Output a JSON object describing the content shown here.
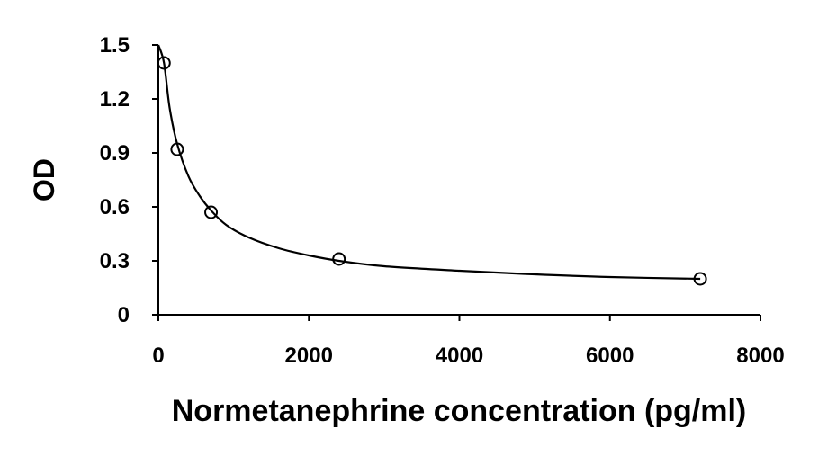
{
  "chart_data": {
    "type": "scatter",
    "xlabel": "Normetanephrine concentration (pg/ml)",
    "ylabel": "OD",
    "xlim": [
      0,
      8000
    ],
    "ylim": [
      0,
      1.5
    ],
    "x_ticks": [
      "0",
      "2000",
      "4000",
      "6000",
      "8000"
    ],
    "y_ticks": [
      "0",
      "0.3",
      "0.6",
      "0.9",
      "1.2",
      "1.5"
    ],
    "grid": false,
    "legend": "none",
    "series": [
      {
        "points": [
          {
            "x": 75,
            "y": 1.4
          },
          {
            "x": 250,
            "y": 0.92
          },
          {
            "x": 700,
            "y": 0.57
          },
          {
            "x": 2400,
            "y": 0.31
          },
          {
            "x": 7200,
            "y": 0.2
          }
        ],
        "marker": "open-circle",
        "color": "#000000"
      }
    ],
    "fit_curve": {
      "color": "#000000",
      "points": [
        {
          "x": 0,
          "y": 1.5
        },
        {
          "x": 75,
          "y": 1.4
        },
        {
          "x": 150,
          "y": 1.15
        },
        {
          "x": 250,
          "y": 0.95
        },
        {
          "x": 400,
          "y": 0.77
        },
        {
          "x": 550,
          "y": 0.66
        },
        {
          "x": 700,
          "y": 0.58
        },
        {
          "x": 900,
          "y": 0.5
        },
        {
          "x": 1200,
          "y": 0.43
        },
        {
          "x": 1600,
          "y": 0.37
        },
        {
          "x": 2000,
          "y": 0.33
        },
        {
          "x": 2400,
          "y": 0.3
        },
        {
          "x": 3000,
          "y": 0.27
        },
        {
          "x": 4000,
          "y": 0.245
        },
        {
          "x": 5000,
          "y": 0.225
        },
        {
          "x": 6000,
          "y": 0.21
        },
        {
          "x": 7200,
          "y": 0.2
        }
      ]
    }
  }
}
